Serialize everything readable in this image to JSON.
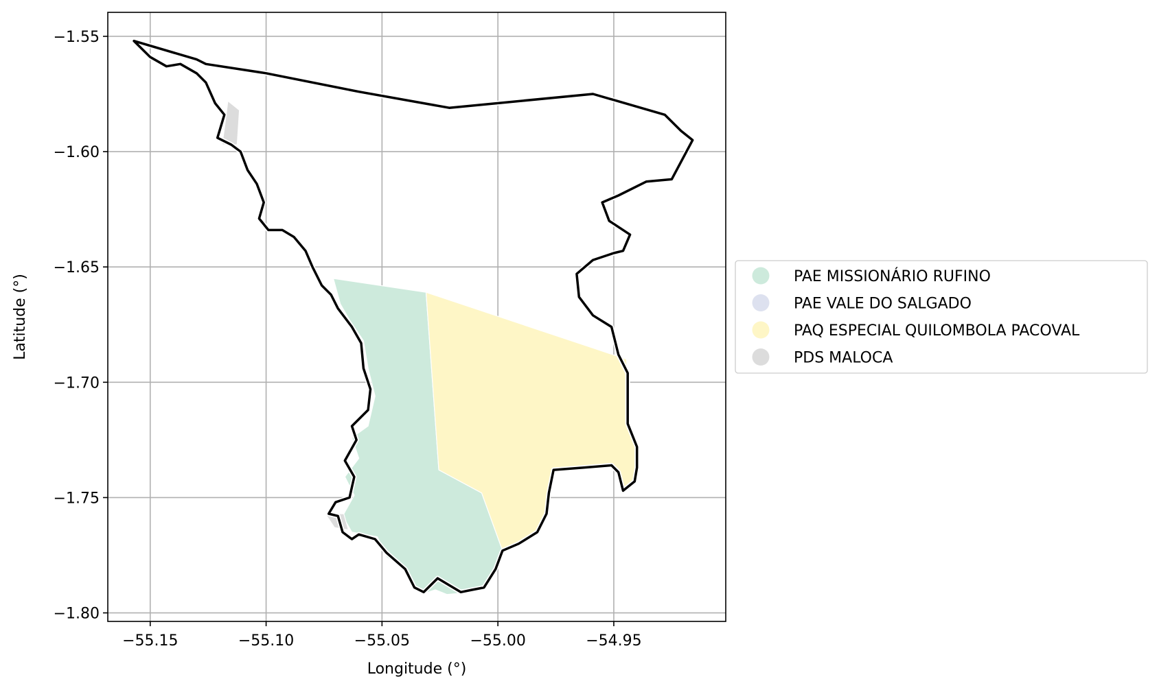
{
  "chart_data": {
    "type": "map",
    "xlabel": "Longitude (°)",
    "ylabel": "Latitude (°)",
    "xlim": [
      -55.1683,
      -54.9017
    ],
    "ylim": [
      -1.8037,
      -1.5396
    ],
    "grid": true,
    "legend_placement": "center-right, outside axes",
    "x_ticks": [
      {
        "value": -55.15,
        "label": "−55.15"
      },
      {
        "value": -55.1,
        "label": "−55.10"
      },
      {
        "value": -55.05,
        "label": "−55.05"
      },
      {
        "value": -55.0,
        "label": "−55.00"
      },
      {
        "value": -54.95,
        "label": "−54.95"
      }
    ],
    "y_ticks": [
      {
        "value": -1.55,
        "label": "−1.55"
      },
      {
        "value": -1.6,
        "label": "−1.60"
      },
      {
        "value": -1.65,
        "label": "−1.65"
      },
      {
        "value": -1.7,
        "label": "−1.70"
      },
      {
        "value": -1.75,
        "label": "−1.75"
      },
      {
        "value": -1.8,
        "label": "−1.80"
      }
    ],
    "legend": [
      {
        "name": "PAE MISSIONÁRIO RUFINO",
        "color": "#cdeadc"
      },
      {
        "name": "PAE VALE DO SALGADO",
        "color": "#dde1ef"
      },
      {
        "name": "PAQ ESPECIAL QUILOMBOLA PACOVAL",
        "color": "#fef6c6"
      },
      {
        "name": "PDS MALOCA",
        "color": "#dcdcdc"
      }
    ],
    "regions": [
      {
        "name": "PAE MISSIONÁRIO RUFINO",
        "color": "#cdeadc",
        "coords": [
          [
            -55.071,
            -1.655
          ],
          [
            -55.031,
            -1.661
          ],
          [
            -55.0255,
            -1.738
          ],
          [
            -55.007,
            -1.748
          ],
          [
            -54.998,
            -1.773
          ],
          [
            -55.0015,
            -1.781
          ],
          [
            -55.006,
            -1.788
          ],
          [
            -55.011,
            -1.791
          ],
          [
            -55.022,
            -1.792
          ],
          [
            -55.027,
            -1.79
          ],
          [
            -55.033,
            -1.792
          ],
          [
            -55.038,
            -1.788
          ],
          [
            -55.04,
            -1.781
          ],
          [
            -55.048,
            -1.776
          ],
          [
            -55.052,
            -1.767
          ],
          [
            -55.063,
            -1.765
          ],
          [
            -55.067,
            -1.758
          ],
          [
            -55.062,
            -1.749
          ],
          [
            -55.066,
            -1.741
          ],
          [
            -55.06,
            -1.733
          ],
          [
            -55.063,
            -1.724
          ],
          [
            -55.056,
            -1.719
          ],
          [
            -55.053,
            -1.706
          ],
          [
            -55.056,
            -1.694
          ],
          [
            -55.058,
            -1.682
          ],
          [
            -55.064,
            -1.673
          ],
          [
            -55.068,
            -1.666
          ]
        ]
      },
      {
        "name": "PAQ ESPECIAL QUILOMBOLA PACOVAL",
        "color": "#fef6c6",
        "coords": [
          [
            -55.031,
            -1.661
          ],
          [
            -54.9445,
            -1.69
          ],
          [
            -54.9435,
            -1.707
          ],
          [
            -54.9435,
            -1.718
          ],
          [
            -54.9395,
            -1.728
          ],
          [
            -54.9395,
            -1.737
          ],
          [
            -54.941,
            -1.743
          ],
          [
            -54.9455,
            -1.746
          ],
          [
            -54.9475,
            -1.739
          ],
          [
            -54.9495,
            -1.737
          ],
          [
            -54.964,
            -1.737
          ],
          [
            -54.976,
            -1.739
          ],
          [
            -54.978,
            -1.747
          ],
          [
            -54.979,
            -1.757
          ],
          [
            -54.981,
            -1.764
          ],
          [
            -54.99,
            -1.77
          ],
          [
            -54.998,
            -1.773
          ],
          [
            -55.007,
            -1.748
          ],
          [
            -55.0255,
            -1.738
          ]
        ]
      },
      {
        "name": "PDS MALOCA",
        "color": "#dcdcdc",
        "coords": [
          [
            -55.1165,
            -1.578
          ],
          [
            -55.1115,
            -1.582
          ],
          [
            -55.1125,
            -1.597
          ],
          [
            -55.119,
            -1.597
          ],
          [
            -55.118,
            -1.59
          ]
        ]
      },
      {
        "name": "PDS MALOCA",
        "color": "#dcdcdc",
        "coords": [
          [
            -55.0745,
            -1.757
          ],
          [
            -55.0665,
            -1.757
          ],
          [
            -55.0645,
            -1.764
          ],
          [
            -55.0705,
            -1.763
          ]
        ]
      }
    ],
    "boundary": {
      "color": "#000000",
      "coords": [
        [
          -55.157,
          -1.552
        ],
        [
          -55.13,
          -1.56
        ],
        [
          -55.126,
          -1.562
        ],
        [
          -55.1,
          -1.566
        ],
        [
          -55.06,
          -1.574
        ],
        [
          -55.021,
          -1.581
        ],
        [
          -54.959,
          -1.575
        ],
        [
          -54.928,
          -1.584
        ],
        [
          -54.921,
          -1.591
        ],
        [
          -54.916,
          -1.595
        ],
        [
          -54.925,
          -1.612
        ],
        [
          -54.936,
          -1.613
        ],
        [
          -54.948,
          -1.619
        ],
        [
          -54.955,
          -1.622
        ],
        [
          -54.952,
          -1.63
        ],
        [
          -54.943,
          -1.636
        ],
        [
          -54.946,
          -1.643
        ],
        [
          -54.95,
          -1.644
        ],
        [
          -54.959,
          -1.647
        ],
        [
          -54.966,
          -1.653
        ],
        [
          -54.965,
          -1.663
        ],
        [
          -54.959,
          -1.671
        ],
        [
          -54.951,
          -1.676
        ],
        [
          -54.948,
          -1.688
        ],
        [
          -54.944,
          -1.696
        ],
        [
          -54.944,
          -1.708
        ],
        [
          -54.944,
          -1.718
        ],
        [
          -54.94,
          -1.728
        ],
        [
          -54.94,
          -1.737
        ],
        [
          -54.941,
          -1.743
        ],
        [
          -54.946,
          -1.747
        ],
        [
          -54.948,
          -1.739
        ],
        [
          -54.951,
          -1.736
        ],
        [
          -54.963,
          -1.737
        ],
        [
          -54.976,
          -1.738
        ],
        [
          -54.978,
          -1.748
        ],
        [
          -54.979,
          -1.757
        ],
        [
          -54.983,
          -1.765
        ],
        [
          -54.991,
          -1.77
        ],
        [
          -54.998,
          -1.773
        ],
        [
          -55.001,
          -1.781
        ],
        [
          -55.006,
          -1.789
        ],
        [
          -55.011,
          -1.79
        ],
        [
          -55.016,
          -1.791
        ],
        [
          -55.021,
          -1.788
        ],
        [
          -55.026,
          -1.785
        ],
        [
          -55.032,
          -1.791
        ],
        [
          -55.036,
          -1.789
        ],
        [
          -55.04,
          -1.781
        ],
        [
          -55.048,
          -1.774
        ],
        [
          -55.053,
          -1.768
        ],
        [
          -55.06,
          -1.766
        ],
        [
          -55.063,
          -1.768
        ],
        [
          -55.067,
          -1.765
        ],
        [
          -55.069,
          -1.758
        ],
        [
          -55.073,
          -1.757
        ],
        [
          -55.07,
          -1.752
        ],
        [
          -55.064,
          -1.75
        ],
        [
          -55.062,
          -1.741
        ],
        [
          -55.066,
          -1.734
        ],
        [
          -55.061,
          -1.725
        ],
        [
          -55.063,
          -1.719
        ],
        [
          -55.056,
          -1.712
        ],
        [
          -55.055,
          -1.703
        ],
        [
          -55.058,
          -1.694
        ],
        [
          -55.059,
          -1.683
        ],
        [
          -55.063,
          -1.676
        ],
        [
          -55.069,
          -1.668
        ],
        [
          -55.072,
          -1.662
        ],
        [
          -55.076,
          -1.658
        ],
        [
          -55.08,
          -1.65
        ],
        [
          -55.083,
          -1.643
        ],
        [
          -55.088,
          -1.637
        ],
        [
          -55.093,
          -1.634
        ],
        [
          -55.099,
          -1.634
        ],
        [
          -55.103,
          -1.629
        ],
        [
          -55.101,
          -1.622
        ],
        [
          -55.104,
          -1.614
        ],
        [
          -55.108,
          -1.608
        ],
        [
          -55.111,
          -1.6
        ],
        [
          -55.115,
          -1.597
        ],
        [
          -55.121,
          -1.594
        ],
        [
          -55.118,
          -1.584
        ],
        [
          -55.122,
          -1.579
        ],
        [
          -55.126,
          -1.57
        ],
        [
          -55.13,
          -1.566
        ],
        [
          -55.137,
          -1.562
        ],
        [
          -55.143,
          -1.563
        ],
        [
          -55.15,
          -1.559
        ],
        [
          -55.157,
          -1.552
        ]
      ]
    }
  }
}
